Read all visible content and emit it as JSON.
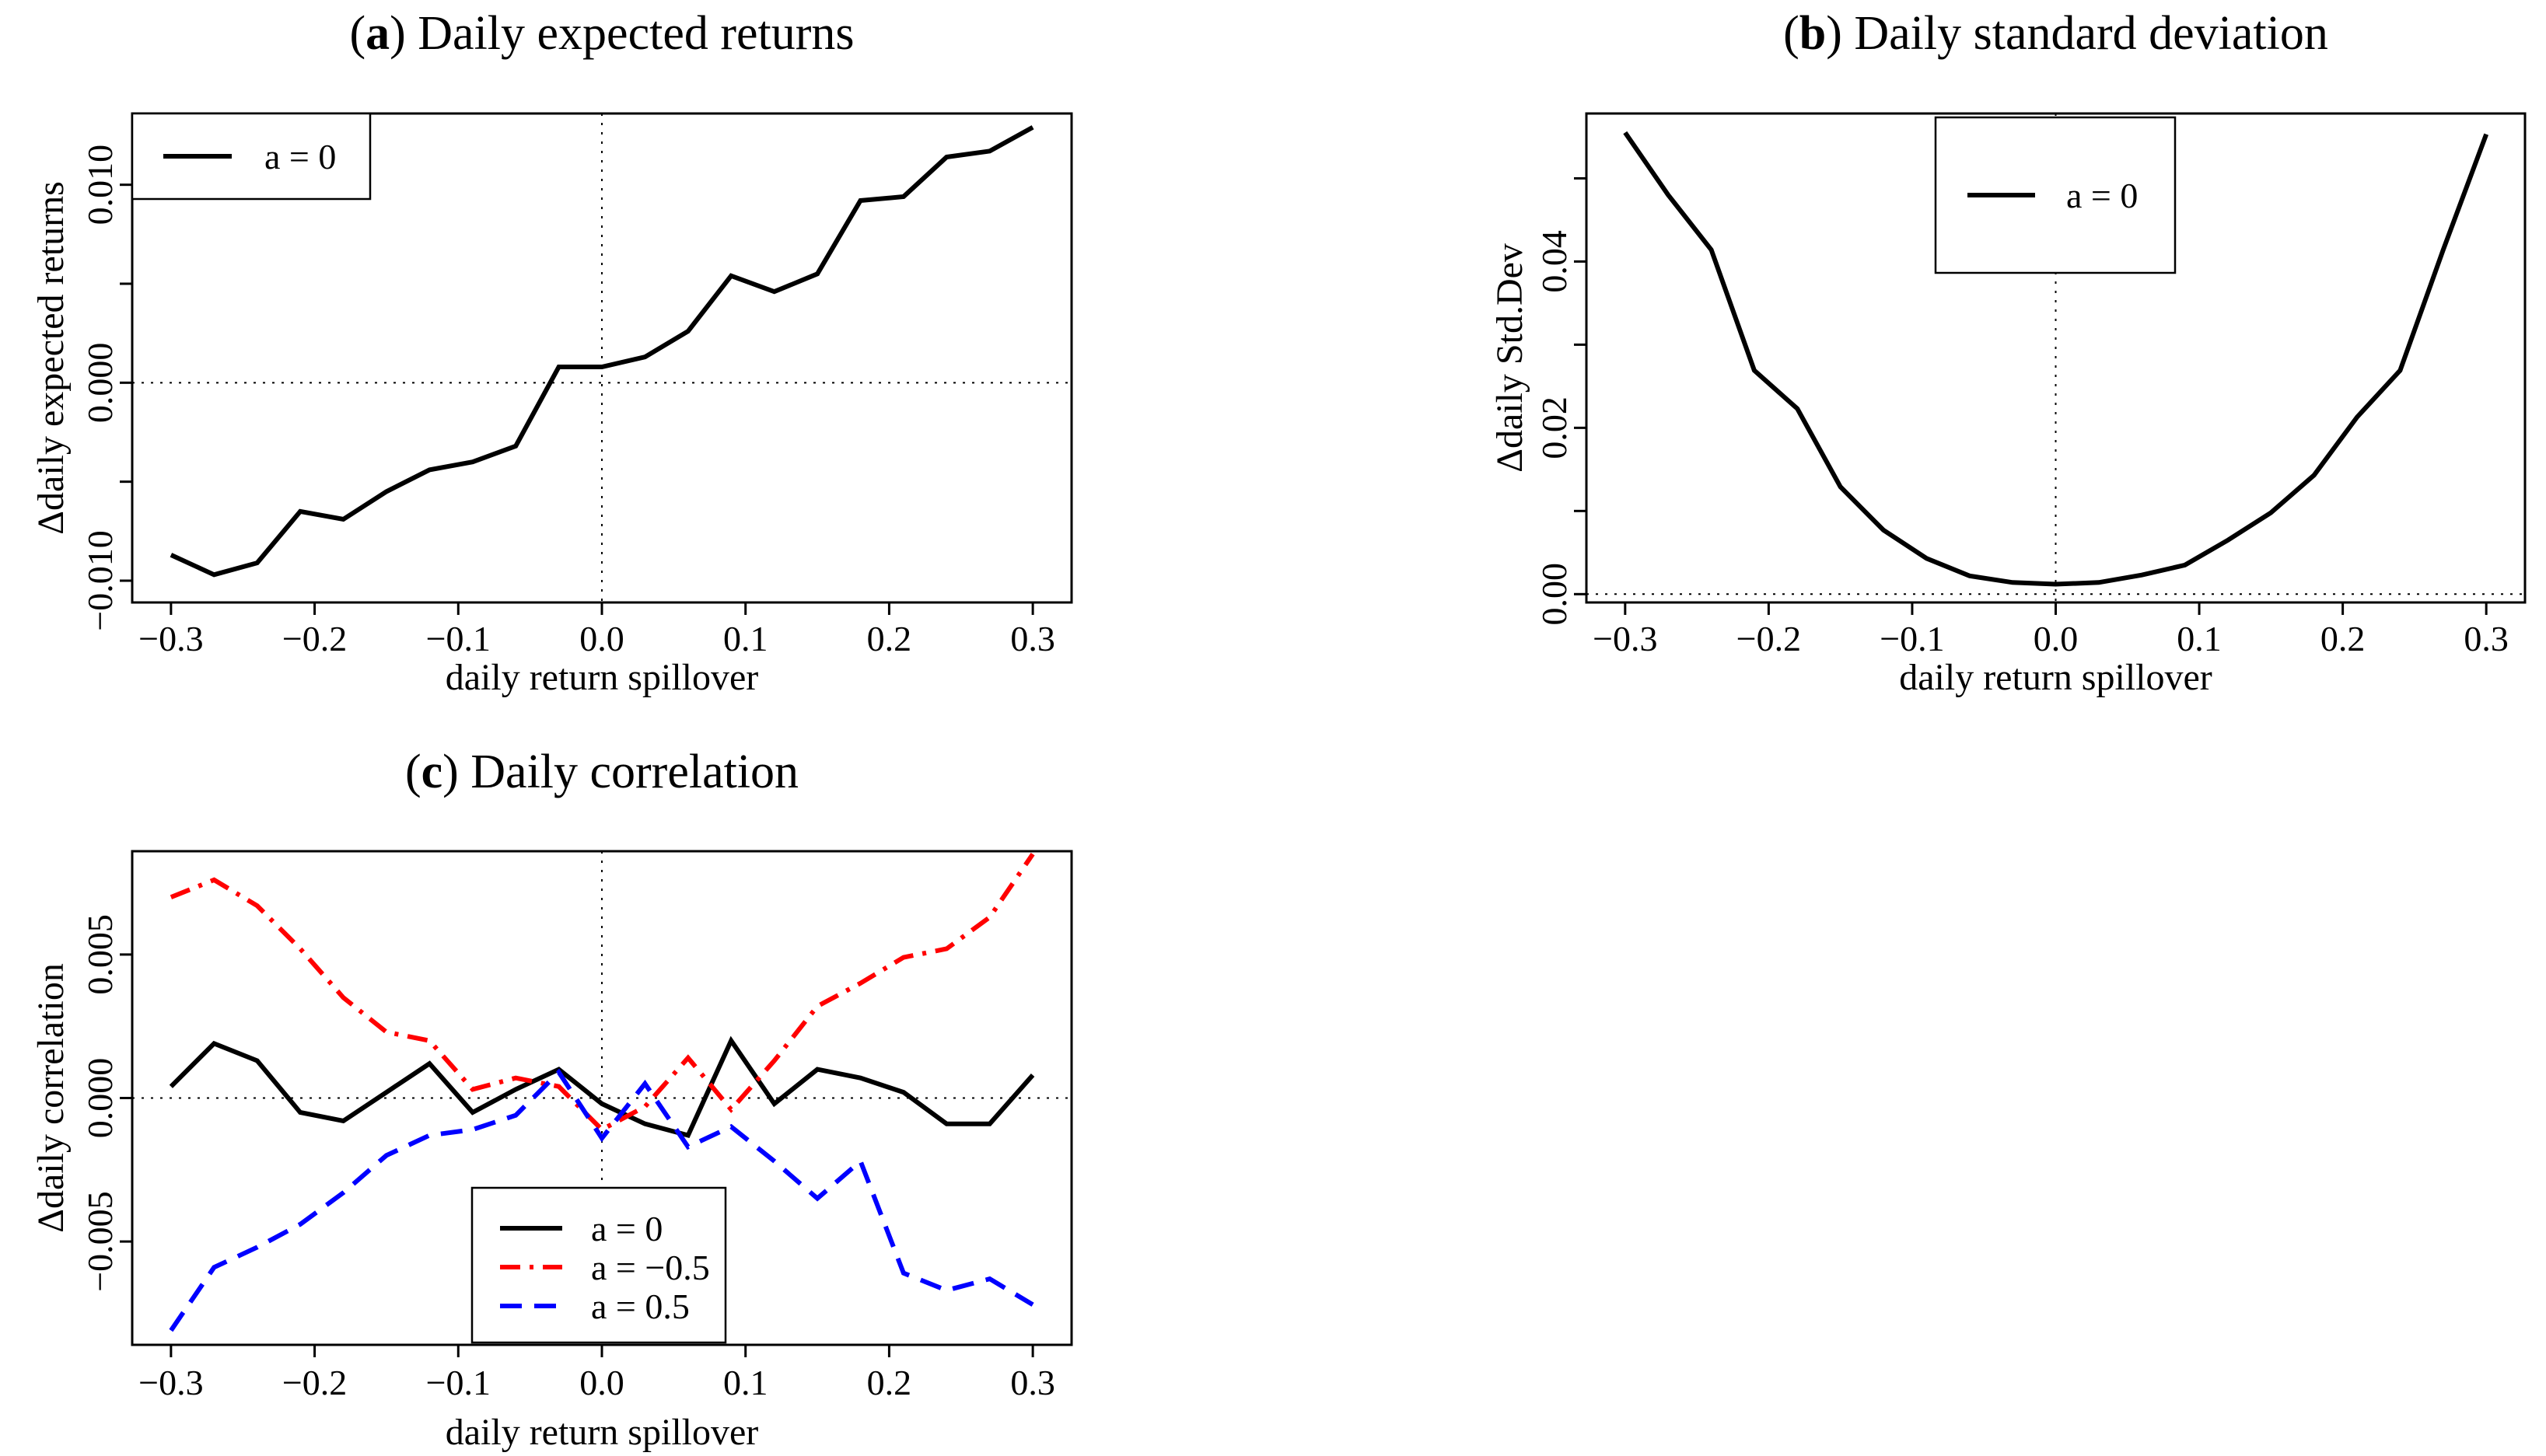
{
  "figure": {
    "background": "#ffffff"
  },
  "colors": {
    "black": "#000000",
    "red": "#ff0000",
    "blue": "#0000ff"
  },
  "panels": {
    "a": {
      "title_prefix": "(",
      "title_bold": "a",
      "title_suffix": ") Daily expected returns"
    },
    "b": {
      "title_prefix": "(",
      "title_bold": "b",
      "title_suffix": ") Daily standard deviation"
    },
    "c": {
      "title_prefix": "(",
      "title_bold": "c",
      "title_suffix": ") Daily correlation"
    }
  },
  "chart_data": [
    {
      "id": "a",
      "type": "line",
      "title": "(a) Daily expected returns",
      "xlabel": "daily return spillover",
      "ylabel": "Δdaily expected returns",
      "x": [
        -0.3,
        -0.27,
        -0.24,
        -0.21,
        -0.18,
        -0.15,
        -0.12,
        -0.09,
        -0.06,
        -0.03,
        0.0,
        0.03,
        0.06,
        0.09,
        0.12,
        0.15,
        0.18,
        0.21,
        0.24,
        0.27,
        0.3
      ],
      "series": [
        {
          "name": "a = 0",
          "color": "#000000",
          "dash": "solid",
          "values": [
            -0.0087,
            -0.0097,
            -0.0091,
            -0.0065,
            -0.0069,
            -0.0055,
            -0.0044,
            -0.004,
            -0.0032,
            0.0008,
            0.0008,
            0.0013,
            0.0026,
            0.0054,
            0.0046,
            0.0055,
            0.0092,
            0.0094,
            0.0114,
            0.0117,
            0.0129
          ]
        }
      ],
      "xlim": [
        -0.327,
        0.327
      ],
      "ylim": [
        -0.0111,
        0.0136
      ],
      "xticks": [
        -0.3,
        -0.2,
        -0.1,
        0.0,
        0.1,
        0.2,
        0.3
      ],
      "xtick_labels": [
        "−0.3",
        "−0.2",
        "−0.1",
        "0.0",
        "0.1",
        "0.2",
        "0.3"
      ],
      "yticks": [
        -0.01,
        -0.005,
        0.0,
        0.005,
        0.01
      ],
      "ytick_labels": [
        "−0.010",
        "",
        "0.000",
        "",
        "0.010"
      ],
      "refline_h": 0.0,
      "refline_v": 0.0,
      "grid": false,
      "legend_position": "top-left"
    },
    {
      "id": "b",
      "type": "line",
      "title": "(b) Daily standard deviation",
      "xlabel": "daily return spillover",
      "ylabel": "Δdaily Std.Dev",
      "x": [
        -0.3,
        -0.27,
        -0.24,
        -0.21,
        -0.18,
        -0.15,
        -0.12,
        -0.09,
        -0.06,
        -0.03,
        0.0,
        0.03,
        0.06,
        0.09,
        0.12,
        0.15,
        0.18,
        0.21,
        0.24,
        0.27,
        0.3
      ],
      "series": [
        {
          "name": "a = 0",
          "color": "#000000",
          "dash": "solid",
          "values": [
            0.0555,
            0.048,
            0.0414,
            0.0269,
            0.0223,
            0.0129,
            0.0077,
            0.0043,
            0.0022,
            0.0014,
            0.0012,
            0.0014,
            0.0023,
            0.0035,
            0.0065,
            0.0098,
            0.0143,
            0.0213,
            0.0269,
            0.0414,
            0.0553
          ]
        }
      ],
      "xlim": [
        -0.327,
        0.327
      ],
      "ylim": [
        -0.001,
        0.0578
      ],
      "xticks": [
        -0.3,
        -0.2,
        -0.1,
        0.0,
        0.1,
        0.2,
        0.3
      ],
      "xtick_labels": [
        "−0.3",
        "−0.2",
        "−0.1",
        "0.0",
        "0.1",
        "0.2",
        "0.3"
      ],
      "yticks": [
        0.0,
        0.01,
        0.02,
        0.03,
        0.04,
        0.05
      ],
      "ytick_labels": [
        "0.00",
        "",
        "0.02",
        "",
        "0.04",
        ""
      ],
      "refline_h": 0.0,
      "refline_v": 0.0,
      "grid": false,
      "legend_position": "top-center"
    },
    {
      "id": "c",
      "type": "line",
      "title": "(c) Daily correlation",
      "xlabel": "daily return spillover",
      "ylabel": "Δdaily correlation",
      "x": [
        -0.3,
        -0.27,
        -0.24,
        -0.21,
        -0.18,
        -0.15,
        -0.12,
        -0.09,
        -0.06,
        -0.03,
        0.0,
        0.03,
        0.06,
        0.09,
        0.12,
        0.15,
        0.18,
        0.21,
        0.24,
        0.27,
        0.3
      ],
      "series": [
        {
          "name": "a = 0",
          "color": "#000000",
          "dash": "solid",
          "values": [
            0.0004,
            0.0019,
            0.0013,
            -0.0005,
            -0.0008,
            0.0002,
            0.0012,
            -0.0005,
            0.0003,
            0.001,
            -0.0002,
            -0.0009,
            -0.0013,
            0.002,
            -0.0002,
            0.001,
            0.0007,
            0.0002,
            -0.0009,
            -0.0009,
            0.0008
          ]
        },
        {
          "name": "a = −0.5",
          "color": "#ff0000",
          "dash": "dashdot",
          "values": [
            0.007,
            0.0076,
            0.0067,
            0.0052,
            0.0035,
            0.0023,
            0.002,
            0.0003,
            0.0007,
            0.0004,
            -0.0011,
            -0.0003,
            0.0014,
            -0.0004,
            0.0013,
            0.0032,
            0.004,
            0.0049,
            0.0052,
            0.0063,
            0.0085
          ]
        },
        {
          "name": "a = 0.5",
          "color": "#0000ff",
          "dash": "dashed",
          "values": [
            -0.0081,
            -0.0059,
            -0.0052,
            -0.0044,
            -0.0033,
            -0.002,
            -0.0013,
            -0.0011,
            -0.0006,
            0.0009,
            -0.0014,
            0.0005,
            -0.0017,
            -0.001,
            -0.0022,
            -0.0035,
            -0.0022,
            -0.0061,
            -0.0067,
            -0.0063,
            -0.0072
          ]
        }
      ],
      "xlim": [
        -0.327,
        0.327
      ],
      "ylim": [
        -0.0086,
        0.0086
      ],
      "xticks": [
        -0.3,
        -0.2,
        -0.1,
        0.0,
        0.1,
        0.2,
        0.3
      ],
      "xtick_labels": [
        "−0.3",
        "−0.2",
        "−0.1",
        "0.0",
        "0.1",
        "0.2",
        "0.3"
      ],
      "yticks": [
        -0.005,
        0.0,
        0.005
      ],
      "ytick_labels": [
        "−0.005",
        "0.000",
        "0.005"
      ],
      "refline_h": 0.0,
      "refline_v": 0.0,
      "grid": false,
      "legend_position": "bottom-center"
    }
  ]
}
